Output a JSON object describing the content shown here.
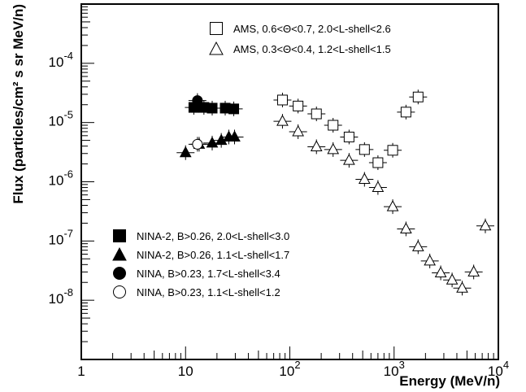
{
  "chart_data": {
    "type": "scatter",
    "title": "",
    "xlabel": "Energy (MeV/n)",
    "ylabel": "Flux (particles/cm² s sr MeV/n)",
    "x_scale": "log",
    "y_scale": "log",
    "xlim": [
      1,
      10000
    ],
    "ylim": [
      1e-09,
      0.001
    ],
    "x_ticks": [
      {
        "value": 1,
        "label": "1"
      },
      {
        "value": 10,
        "label": "10"
      },
      {
        "value": 100,
        "base": "10",
        "exp": "2"
      },
      {
        "value": 1000,
        "base": "10",
        "exp": "3"
      },
      {
        "value": 10000,
        "base": "10",
        "exp": "4"
      }
    ],
    "y_ticks": [
      {
        "value": 1e-08,
        "base": "10",
        "exp": "-8"
      },
      {
        "value": 1e-07,
        "base": "10",
        "exp": "-7"
      },
      {
        "value": 1e-06,
        "base": "10",
        "exp": "-6"
      },
      {
        "value": 1e-05,
        "base": "10",
        "exp": "-5"
      },
      {
        "value": 0.0001,
        "base": "10",
        "exp": "-4"
      }
    ],
    "grid": false,
    "series": [
      {
        "name": "AMS, 0.6<Θ<0.7, 2.0<L-shell<2.6",
        "marker": "open-square",
        "legend_position": "top-right",
        "points": [
          {
            "x": 85,
            "y": 2.4e-05
          },
          {
            "x": 120,
            "y": 1.9e-05
          },
          {
            "x": 180,
            "y": 1.4e-05
          },
          {
            "x": 260,
            "y": 9e-06
          },
          {
            "x": 370,
            "y": 5.7e-06
          },
          {
            "x": 520,
            "y": 3.5e-06
          },
          {
            "x": 700,
            "y": 2.1e-06
          },
          {
            "x": 970,
            "y": 3.4e-06
          },
          {
            "x": 1300,
            "y": 1.5e-05
          },
          {
            "x": 1700,
            "y": 2.7e-05
          }
        ]
      },
      {
        "name": "AMS, 0.3<Θ<0.4, 1.2<L-shell<1.5",
        "marker": "open-triangle",
        "legend_position": "top-right",
        "points": [
          {
            "x": 85,
            "y": 1.05e-05
          },
          {
            "x": 120,
            "y": 7e-06
          },
          {
            "x": 180,
            "y": 3.9e-06
          },
          {
            "x": 260,
            "y": 3.5e-06
          },
          {
            "x": 370,
            "y": 2.3e-06
          },
          {
            "x": 520,
            "y": 1.1e-06
          },
          {
            "x": 700,
            "y": 8e-07
          },
          {
            "x": 970,
            "y": 3.8e-07
          },
          {
            "x": 1300,
            "y": 1.6e-07
          },
          {
            "x": 1700,
            "y": 8e-08
          },
          {
            "x": 2200,
            "y": 4.6e-08
          },
          {
            "x": 2800,
            "y": 2.9e-08
          },
          {
            "x": 3600,
            "y": 2.2e-08
          },
          {
            "x": 4500,
            "y": 1.6e-08
          },
          {
            "x": 5800,
            "y": 3e-08
          },
          {
            "x": 7500,
            "y": 1.8e-07
          }
        ]
      },
      {
        "name": "NINA-2, B>0.26, 2.0<L-shell<3.0",
        "marker": "filled-square",
        "legend_position": "bottom-left",
        "points": [
          {
            "x": 12,
            "y": 1.8e-05
          },
          {
            "x": 15,
            "y": 1.8e-05
          },
          {
            "x": 18,
            "y": 1.75e-05
          },
          {
            "x": 24,
            "y": 1.75e-05
          },
          {
            "x": 29,
            "y": 1.7e-05
          }
        ]
      },
      {
        "name": "NINA-2, B>0.26, 1.1<L-shell<1.7",
        "marker": "filled-triangle",
        "legend_position": "bottom-left",
        "points": [
          {
            "x": 10,
            "y": 3.1e-06
          },
          {
            "x": 13.5,
            "y": 4.3e-06
          },
          {
            "x": 18,
            "y": 4.5e-06
          },
          {
            "x": 22,
            "y": 5e-06
          },
          {
            "x": 26,
            "y": 5.7e-06
          },
          {
            "x": 29.5,
            "y": 5.7e-06
          }
        ]
      },
      {
        "name": "NINA, B>0.23, 1.7<L-shell<3.4",
        "marker": "filled-circle",
        "legend_position": "bottom-left",
        "points": [
          {
            "x": 13,
            "y": 2.35e-05
          }
        ]
      },
      {
        "name": "NINA, B>0.23, 1.1<L-shell<1.2",
        "marker": "open-circle",
        "legend_position": "bottom-left",
        "points": [
          {
            "x": 13,
            "y": 4.3e-06
          }
        ]
      }
    ]
  }
}
